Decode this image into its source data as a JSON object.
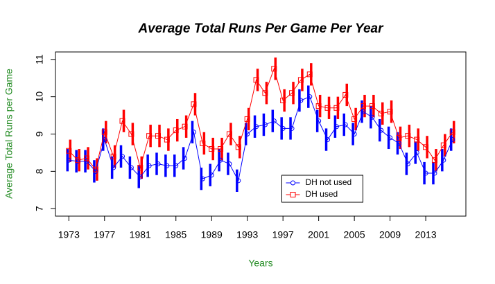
{
  "chart_data": {
    "type": "line",
    "title": "Average Total Runs Per Game Per Year",
    "x_label": "Years",
    "y_label": "Average Total Runs per Game",
    "x": [
      1973,
      1974,
      1975,
      1976,
      1977,
      1978,
      1979,
      1980,
      1981,
      1982,
      1983,
      1984,
      1985,
      1986,
      1987,
      1988,
      1989,
      1990,
      1991,
      1992,
      1993,
      1994,
      1995,
      1996,
      1997,
      1998,
      1999,
      2000,
      2001,
      2002,
      2003,
      2004,
      2005,
      2006,
      2007,
      2008,
      2009,
      2010,
      2011,
      2012,
      2013,
      2014,
      2015,
      2016
    ],
    "series": [
      {
        "name": "DH not used",
        "color": "#0000ff",
        "marker": "circle",
        "values": [
          8.3,
          8.27,
          8.27,
          8.0,
          8.85,
          8.1,
          8.4,
          8.1,
          7.85,
          8.15,
          8.2,
          8.15,
          8.15,
          8.35,
          9.05,
          7.8,
          7.9,
          8.3,
          8.2,
          7.75,
          9.0,
          9.2,
          9.25,
          9.35,
          9.15,
          9.15,
          9.9,
          10.0,
          9.35,
          8.85,
          9.2,
          9.25,
          9.0,
          9.6,
          9.45,
          9.1,
          8.9,
          8.75,
          8.2,
          8.5,
          7.95,
          7.95,
          8.3,
          8.85
        ],
        "errors": [
          0.3,
          0.3,
          0.3,
          0.3,
          0.3,
          0.3,
          0.3,
          0.3,
          0.3,
          0.3,
          0.3,
          0.3,
          0.3,
          0.3,
          0.3,
          0.3,
          0.3,
          0.3,
          0.3,
          0.3,
          0.3,
          0.3,
          0.3,
          0.3,
          0.3,
          0.3,
          0.3,
          0.3,
          0.3,
          0.3,
          0.3,
          0.3,
          0.3,
          0.3,
          0.3,
          0.3,
          0.3,
          0.3,
          0.3,
          0.3,
          0.3,
          0.3,
          0.3,
          0.3
        ]
      },
      {
        "name": "DH used",
        "color": "#ff0000",
        "marker": "square",
        "values": [
          8.55,
          8.3,
          8.35,
          8.05,
          9.05,
          8.4,
          9.35,
          9.0,
          8.1,
          8.95,
          8.95,
          8.85,
          9.1,
          9.2,
          9.8,
          8.75,
          8.6,
          8.6,
          9.0,
          8.65,
          9.4,
          10.45,
          10.1,
          10.75,
          9.9,
          10.1,
          10.45,
          10.6,
          9.75,
          9.7,
          9.7,
          10.05,
          9.4,
          9.75,
          9.75,
          9.55,
          9.6,
          8.9,
          8.95,
          8.85,
          8.65,
          8.3,
          8.7,
          9.05
        ],
        "errors": [
          0.3,
          0.3,
          0.3,
          0.3,
          0.3,
          0.3,
          0.3,
          0.3,
          0.3,
          0.3,
          0.3,
          0.3,
          0.3,
          0.3,
          0.3,
          0.3,
          0.3,
          0.3,
          0.3,
          0.3,
          0.3,
          0.3,
          0.3,
          0.3,
          0.3,
          0.3,
          0.3,
          0.3,
          0.3,
          0.3,
          0.3,
          0.3,
          0.3,
          0.3,
          0.3,
          0.3,
          0.3,
          0.3,
          0.3,
          0.3,
          0.3,
          0.3,
          0.3,
          0.3
        ]
      }
    ],
    "xlim": [
      1971.5,
      2017.5
    ],
    "xticks": [
      1973,
      1977,
      1981,
      1985,
      1989,
      1993,
      1997,
      2001,
      2005,
      2009,
      2013
    ],
    "ylim": [
      6.8,
      11.2
    ],
    "yticks": [
      7,
      8,
      9,
      10,
      11
    ],
    "axis_label_color": "#228b22",
    "legend": "bottom"
  }
}
